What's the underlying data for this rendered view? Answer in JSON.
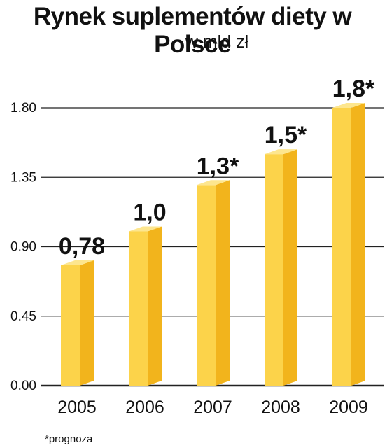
{
  "chart_data": {
    "type": "bar",
    "title": "Rynek suplementów diety w Polsce",
    "subtitle": "w mld zł",
    "categories": [
      "2005",
      "2006",
      "2007",
      "2008",
      "2009"
    ],
    "values": [
      0.78,
      1.0,
      1.3,
      1.5,
      1.8
    ],
    "data_labels": [
      "0,78",
      "1,0",
      "1,3*",
      "1,5*",
      "1,8*"
    ],
    "y_ticks": [
      "0.00",
      "0.45",
      "0.90",
      "1.35",
      "1.80"
    ],
    "ylim": [
      0,
      1.8
    ],
    "xlabel": "",
    "ylabel": "",
    "grid": true,
    "legend": "none",
    "footnote": "*prognoza",
    "colors": {
      "bar_front": "#fcd34a",
      "bar_side": "#f2b41c",
      "bar_top": "#fde68e",
      "grid": "#222222"
    }
  }
}
